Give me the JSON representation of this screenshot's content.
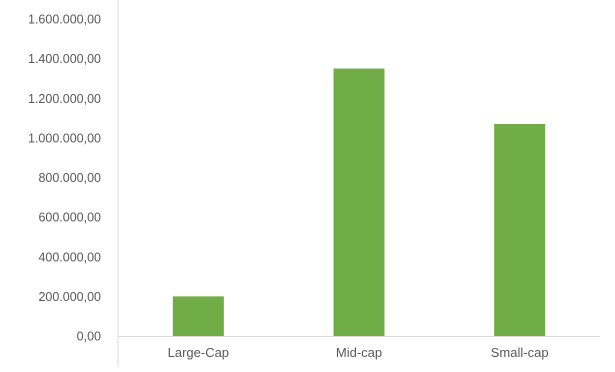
{
  "chart_data": {
    "type": "bar",
    "title": "",
    "xlabel": "",
    "ylabel": "",
    "categories": [
      "Large-Cap",
      "Mid-cap",
      "Small-cap"
    ],
    "series": [
      {
        "values": [
          200000,
          1350000,
          1070000
        ],
        "color": "#70ad47"
      }
    ],
    "ylim": [
      0,
      1600000
    ],
    "yticks": [
      0,
      200000,
      400000,
      600000,
      800000,
      1000000,
      1200000,
      1400000,
      1600000
    ],
    "ytick_labels": [
      "0,00",
      "200.000,00",
      "400.000,00",
      "600.000,00",
      "800.000,00",
      "1.000.000,00",
      "1.200.000,00",
      "1.400.000,00",
      "1.600.000,00"
    ],
    "grid": false,
    "legend": "none",
    "axis_color": "#d9d9d9"
  }
}
